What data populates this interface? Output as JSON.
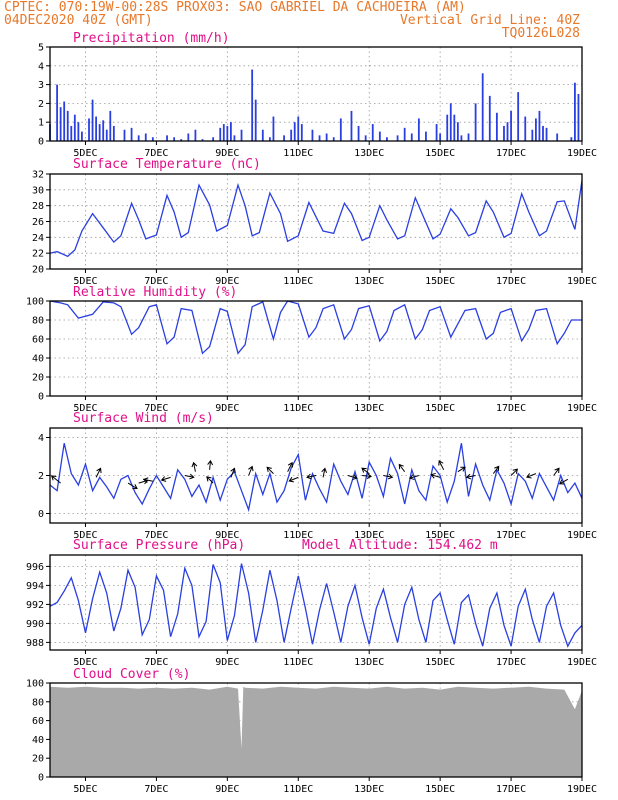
{
  "header": {
    "left_line1": "CPTEC:  070:19W-00:28S  PROX03: SAO GABRIEL DA CACHOEIRA (AM)",
    "left_line2": "04DEC2020 40Z (GMT)",
    "right_line2": "Vertical Grid Line: 40Z",
    "right_line3": "TQ0126L028"
  },
  "time_axis": {
    "start_day": 4,
    "end_day": 19,
    "tick_labels": [
      "5DEC",
      "7DEC",
      "9DEC",
      "11DEC",
      "13DEC",
      "15DEC",
      "17DEC",
      "19DEC"
    ]
  },
  "colors": {
    "series": "#2a3fe0",
    "bars": "#2a3fe0",
    "cloud": "#a9a9a9",
    "title": "#e0108a",
    "header": "#e8782a"
  },
  "chart_data": [
    {
      "type": "bar",
      "id": "precip",
      "title": "Precipitation (mm/h)",
      "ylim": [
        0,
        5
      ],
      "yticks": [
        0,
        1,
        2,
        3,
        4,
        5
      ],
      "x_days": [
        4.0,
        4.2,
        4.3,
        4.4,
        4.5,
        4.6,
        4.7,
        4.8,
        4.9,
        5.1,
        5.2,
        5.3,
        5.4,
        5.5,
        5.6,
        5.7,
        5.8,
        6.1,
        6.3,
        6.5,
        6.7,
        6.9,
        7.3,
        7.5,
        7.7,
        7.9,
        8.1,
        8.3,
        8.6,
        8.8,
        8.9,
        9.0,
        9.1,
        9.2,
        9.4,
        9.7,
        9.8,
        10.0,
        10.2,
        10.3,
        10.6,
        10.8,
        10.9,
        11.0,
        11.1,
        11.4,
        11.6,
        11.8,
        12.0,
        12.2,
        12.5,
        12.7,
        12.9,
        13.1,
        13.3,
        13.5,
        13.8,
        14.0,
        14.2,
        14.4,
        14.6,
        14.9,
        15.0,
        15.2,
        15.3,
        15.4,
        15.5,
        15.6,
        15.8,
        16.0,
        16.2,
        16.4,
        16.6,
        16.8,
        16.9,
        17.0,
        17.2,
        17.4,
        17.6,
        17.7,
        17.8,
        17.9,
        18.0,
        18.3,
        18.7,
        18.8,
        18.9
      ],
      "values": [
        0.9,
        3.0,
        1.8,
        2.1,
        1.6,
        0.8,
        1.4,
        1.0,
        0.5,
        1.2,
        2.2,
        1.3,
        0.9,
        1.1,
        0.6,
        1.6,
        0.8,
        0.6,
        0.7,
        0.3,
        0.4,
        0.2,
        0.3,
        0.2,
        0.1,
        0.4,
        0.6,
        0.1,
        0.2,
        0.7,
        0.9,
        0.8,
        1.0,
        0.3,
        0.6,
        3.8,
        2.2,
        0.6,
        0.2,
        1.3,
        0.3,
        0.6,
        1.0,
        1.3,
        0.9,
        0.6,
        0.3,
        0.4,
        0.2,
        1.2,
        1.6,
        0.8,
        0.3,
        0.9,
        0.5,
        0.2,
        0.3,
        0.7,
        0.4,
        1.2,
        0.5,
        0.9,
        0.4,
        1.4,
        2.0,
        1.4,
        1.0,
        0.3,
        0.4,
        2.0,
        3.6,
        2.4,
        1.5,
        0.8,
        1.0,
        1.6,
        2.6,
        1.3,
        0.6,
        1.2,
        1.6,
        0.8,
        0.7,
        0.4,
        0.2,
        3.1,
        2.5
      ]
    },
    {
      "type": "line",
      "id": "temp",
      "title": "Surface Temperature (nC)",
      "ylim": [
        20,
        32
      ],
      "yticks": [
        20,
        22,
        24,
        26,
        28,
        30,
        32
      ],
      "x_days": [
        4.0,
        4.2,
        4.5,
        4.7,
        4.9,
        5.2,
        5.5,
        5.8,
        6.0,
        6.3,
        6.5,
        6.7,
        7.0,
        7.3,
        7.5,
        7.7,
        7.9,
        8.2,
        8.5,
        8.7,
        9.0,
        9.3,
        9.5,
        9.7,
        9.9,
        10.2,
        10.5,
        10.7,
        11.0,
        11.3,
        11.5,
        11.7,
        12.0,
        12.3,
        12.5,
        12.8,
        13.0,
        13.3,
        13.5,
        13.8,
        14.0,
        14.3,
        14.5,
        14.8,
        15.0,
        15.3,
        15.5,
        15.8,
        16.0,
        16.3,
        16.5,
        16.8,
        17.0,
        17.3,
        17.5,
        17.8,
        18.0,
        18.3,
        18.5,
        18.8,
        19.0
      ],
      "values": [
        22.0,
        22.2,
        21.6,
        22.4,
        24.8,
        27.0,
        25.2,
        23.4,
        24.2,
        28.3,
        26.2,
        23.8,
        24.3,
        29.3,
        27.2,
        24.0,
        24.6,
        30.6,
        28.1,
        24.8,
        25.5,
        30.6,
        28.0,
        24.2,
        24.6,
        29.6,
        27.0,
        23.5,
        24.2,
        28.4,
        26.6,
        24.8,
        24.5,
        28.3,
        27.0,
        23.6,
        24.0,
        28.0,
        26.2,
        23.8,
        24.2,
        29.0,
        26.9,
        23.8,
        24.4,
        27.6,
        26.5,
        24.2,
        24.6,
        28.6,
        27.2,
        24.0,
        24.5,
        29.5,
        27.2,
        24.2,
        24.8,
        28.5,
        28.6,
        25.0,
        31.2
      ]
    },
    {
      "type": "line",
      "id": "rh",
      "title": "Relative Humidity (%)",
      "ylim": [
        0,
        100
      ],
      "yticks": [
        0,
        20,
        40,
        60,
        80,
        100
      ],
      "x_days": [
        4.0,
        4.3,
        4.5,
        4.8,
        5.2,
        5.5,
        5.8,
        6.0,
        6.3,
        6.5,
        6.8,
        7.0,
        7.3,
        7.5,
        7.7,
        8.0,
        8.3,
        8.5,
        8.8,
        9.0,
        9.3,
        9.5,
        9.7,
        10.0,
        10.3,
        10.5,
        10.7,
        11.0,
        11.3,
        11.5,
        11.7,
        12.0,
        12.3,
        12.5,
        12.7,
        13.0,
        13.3,
        13.5,
        13.7,
        14.0,
        14.3,
        14.5,
        14.7,
        15.0,
        15.3,
        15.5,
        15.7,
        16.0,
        16.3,
        16.5,
        16.7,
        17.0,
        17.3,
        17.5,
        17.7,
        18.0,
        18.3,
        18.5,
        18.7,
        19.0
      ],
      "values": [
        100,
        98,
        96,
        82,
        86,
        99,
        98,
        94,
        65,
        72,
        94,
        96,
        55,
        62,
        92,
        90,
        45,
        52,
        92,
        89,
        45,
        54,
        94,
        99,
        60,
        88,
        100,
        97,
        62,
        72,
        92,
        96,
        60,
        70,
        92,
        95,
        58,
        68,
        90,
        96,
        60,
        70,
        90,
        94,
        62,
        76,
        90,
        92,
        60,
        66,
        88,
        92,
        58,
        70,
        90,
        92,
        55,
        66,
        80,
        80
      ]
    },
    {
      "type": "line",
      "id": "wind",
      "title": "Surface Wind (m/s)",
      "ylim": [
        -0.5,
        4.5
      ],
      "yticks": [
        0,
        2,
        4
      ],
      "x_days": [
        4.0,
        4.2,
        4.4,
        4.6,
        4.8,
        5.0,
        5.2,
        5.4,
        5.6,
        5.8,
        6.0,
        6.2,
        6.4,
        6.6,
        6.8,
        7.0,
        7.2,
        7.4,
        7.6,
        7.8,
        8.0,
        8.2,
        8.4,
        8.6,
        8.8,
        9.0,
        9.2,
        9.4,
        9.6,
        9.8,
        10.0,
        10.2,
        10.4,
        10.6,
        10.8,
        11.0,
        11.2,
        11.4,
        11.6,
        11.8,
        12.0,
        12.2,
        12.4,
        12.6,
        12.8,
        13.0,
        13.2,
        13.4,
        13.6,
        13.8,
        14.0,
        14.2,
        14.4,
        14.6,
        14.8,
        15.0,
        15.2,
        15.4,
        15.6,
        15.8,
        16.0,
        16.2,
        16.4,
        16.6,
        16.8,
        17.0,
        17.2,
        17.4,
        17.6,
        17.8,
        18.0,
        18.2,
        18.4,
        18.6,
        18.8,
        19.0
      ],
      "values": [
        1.5,
        1.2,
        3.7,
        2.1,
        1.5,
        2.6,
        1.2,
        1.9,
        1.4,
        0.8,
        1.8,
        2.0,
        1.1,
        0.5,
        1.3,
        2.0,
        1.4,
        0.8,
        2.3,
        1.8,
        0.9,
        1.5,
        0.6,
        1.9,
        0.7,
        1.8,
        2.2,
        1.2,
        0.2,
        2.1,
        1.0,
        2.1,
        0.6,
        1.2,
        2.4,
        3.1,
        0.7,
        2.1,
        1.3,
        0.6,
        2.6,
        1.7,
        1.0,
        2.2,
        0.8,
        2.7,
        2.0,
        0.9,
        2.9,
        2.1,
        0.5,
        2.3,
        1.2,
        0.7,
        2.5,
        2.0,
        0.6,
        1.7,
        3.7,
        0.9,
        2.6,
        1.5,
        0.7,
        2.3,
        1.6,
        0.5,
        2.1,
        1.7,
        0.8,
        2.1,
        1.4,
        0.7,
        2.0,
        1.1,
        1.6,
        0.8
      ]
    },
    {
      "type": "line",
      "id": "pres",
      "title": "Surface Pressure (hPa)",
      "annotation": "Model Altitude: 154.462 m",
      "ylim": [
        987.2,
        997.2
      ],
      "yticks": [
        988,
        990,
        992,
        994,
        996
      ],
      "x_days": [
        4.0,
        4.2,
        4.4,
        4.6,
        4.8,
        5.0,
        5.2,
        5.4,
        5.6,
        5.8,
        6.0,
        6.2,
        6.4,
        6.6,
        6.8,
        7.0,
        7.2,
        7.4,
        7.6,
        7.8,
        8.0,
        8.2,
        8.4,
        8.6,
        8.8,
        9.0,
        9.2,
        9.4,
        9.6,
        9.8,
        10.0,
        10.2,
        10.4,
        10.6,
        10.8,
        11.0,
        11.2,
        11.4,
        11.6,
        11.8,
        12.0,
        12.2,
        12.4,
        12.6,
        12.8,
        13.0,
        13.2,
        13.4,
        13.6,
        13.8,
        14.0,
        14.2,
        14.4,
        14.6,
        14.8,
        15.0,
        15.2,
        15.4,
        15.6,
        15.8,
        16.0,
        16.2,
        16.4,
        16.6,
        16.8,
        17.0,
        17.2,
        17.4,
        17.6,
        17.8,
        18.0,
        18.2,
        18.4,
        18.6,
        18.8,
        19.0
      ],
      "values": [
        991.8,
        992.2,
        993.4,
        994.8,
        992.4,
        989.0,
        992.6,
        995.4,
        993.2,
        989.2,
        991.6,
        995.6,
        993.8,
        988.8,
        990.4,
        995.0,
        993.5,
        988.6,
        991.0,
        995.8,
        994.0,
        988.6,
        990.2,
        996.2,
        994.3,
        988.2,
        990.8,
        996.3,
        993.2,
        988.0,
        991.4,
        995.6,
        992.4,
        988.0,
        991.6,
        995.0,
        991.6,
        987.8,
        991.4,
        994.2,
        991.2,
        988.0,
        991.8,
        994.0,
        990.6,
        987.8,
        991.6,
        993.6,
        990.6,
        988.0,
        992.0,
        993.8,
        990.4,
        988.0,
        992.4,
        993.2,
        990.4,
        987.8,
        992.2,
        993.0,
        990.0,
        987.6,
        991.6,
        993.2,
        989.8,
        987.6,
        991.8,
        993.6,
        990.4,
        988.0,
        991.8,
        993.2,
        989.8,
        987.6,
        989.0,
        989.8
      ]
    },
    {
      "type": "area",
      "id": "cloud",
      "title": "Cloud Cover (%)",
      "ylim": [
        0,
        100
      ],
      "yticks": [
        0,
        20,
        40,
        60,
        80,
        100
      ],
      "x_days": [
        4.0,
        4.5,
        5.0,
        5.5,
        6.0,
        6.5,
        7.0,
        7.5,
        8.0,
        8.5,
        9.0,
        9.3,
        9.4,
        9.45,
        9.5,
        10.0,
        10.5,
        11.0,
        11.5,
        12.0,
        12.5,
        13.0,
        13.5,
        14.0,
        14.5,
        15.0,
        15.5,
        16.0,
        16.5,
        17.0,
        17.5,
        18.0,
        18.5,
        18.8,
        19.0
      ],
      "values": [
        96,
        95,
        96,
        95,
        95,
        94,
        95,
        94,
        95,
        93,
        96,
        94,
        30,
        96,
        95,
        94,
        96,
        95,
        94,
        96,
        95,
        94,
        96,
        94,
        95,
        93,
        96,
        95,
        94,
        95,
        96,
        94,
        93,
        72,
        92
      ]
    }
  ]
}
